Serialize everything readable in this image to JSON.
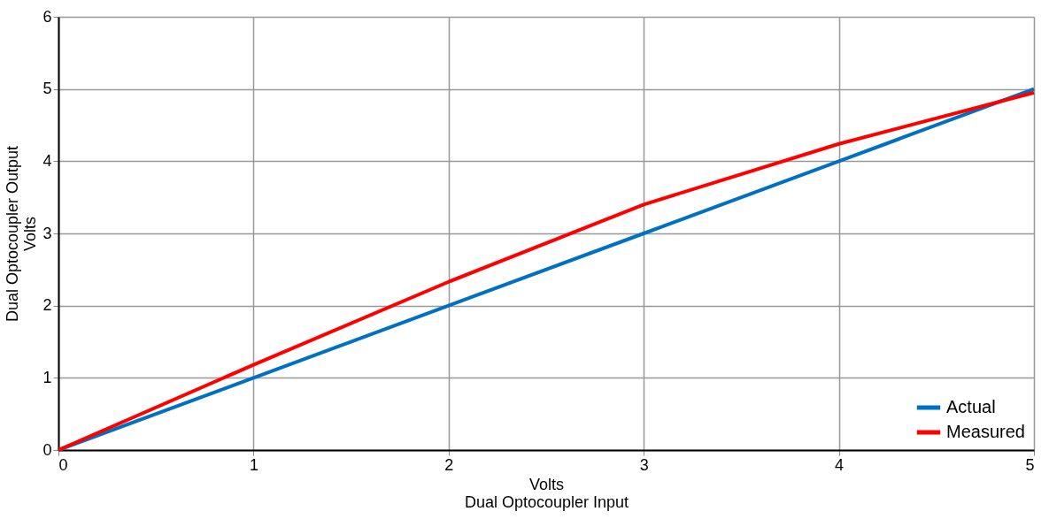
{
  "chart_data": {
    "type": "line",
    "xlabel": "Volts\nDual Optocoupler Input",
    "ylabel": "Dual Optocoupler Output\nVolts",
    "x": [
      0,
      1,
      2,
      3,
      4,
      5
    ],
    "series": [
      {
        "name": "Actual",
        "color": "#0070c0",
        "values": [
          0,
          1,
          2,
          3,
          4,
          5
        ]
      },
      {
        "name": "Measured",
        "color": "#ff0000",
        "values": [
          0,
          1.18,
          2.33,
          3.4,
          4.24,
          4.95
        ]
      }
    ],
    "xlim": [
      0,
      5
    ],
    "ylim": [
      0,
      6
    ],
    "xticks": [
      0,
      1,
      2,
      3,
      4,
      5
    ],
    "yticks": [
      0,
      1,
      2,
      3,
      4,
      5,
      6
    ],
    "grid": true,
    "legend": "bottom right",
    "marker": "none",
    "line_style": "solid"
  }
}
